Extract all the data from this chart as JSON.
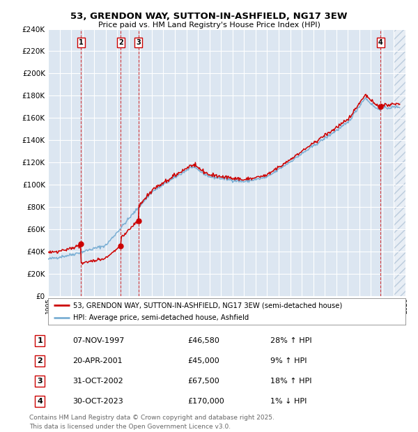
{
  "title": "53, GRENDON WAY, SUTTON-IN-ASHFIELD, NG17 3EW",
  "subtitle": "Price paid vs. HM Land Registry's House Price Index (HPI)",
  "bg_color": "#dce6f1",
  "transactions": [
    {
      "label": "1",
      "date": "07-NOV-1997",
      "price": 46580,
      "pct": "28% ↑ HPI",
      "x": 1997.86
    },
    {
      "label": "2",
      "date": "20-APR-2001",
      "price": 45000,
      "pct": "9% ↑ HPI",
      "x": 2001.3
    },
    {
      "label": "3",
      "date": "31-OCT-2002",
      "price": 67500,
      "pct": "18% ↑ HPI",
      "x": 2002.83
    },
    {
      "label": "4",
      "date": "30-OCT-2023",
      "price": 170000,
      "pct": "1% ↓ HPI",
      "x": 2023.83
    }
  ],
  "legend_line1": "53, GRENDON WAY, SUTTON-IN-ASHFIELD, NG17 3EW (semi-detached house)",
  "legend_line2": "HPI: Average price, semi-detached house, Ashfield",
  "footer": "Contains HM Land Registry data © Crown copyright and database right 2025.\nThis data is licensed under the Open Government Licence v3.0.",
  "xmin": 1995,
  "xmax": 2026,
  "ymin": 0,
  "ymax": 240000,
  "yticks": [
    0,
    20000,
    40000,
    60000,
    80000,
    100000,
    120000,
    140000,
    160000,
    180000,
    200000,
    220000,
    240000
  ],
  "red_color": "#cc0000",
  "blue_color": "#7bafd4",
  "grid_color": "#ffffff",
  "hatch_color": "#e8eef5"
}
